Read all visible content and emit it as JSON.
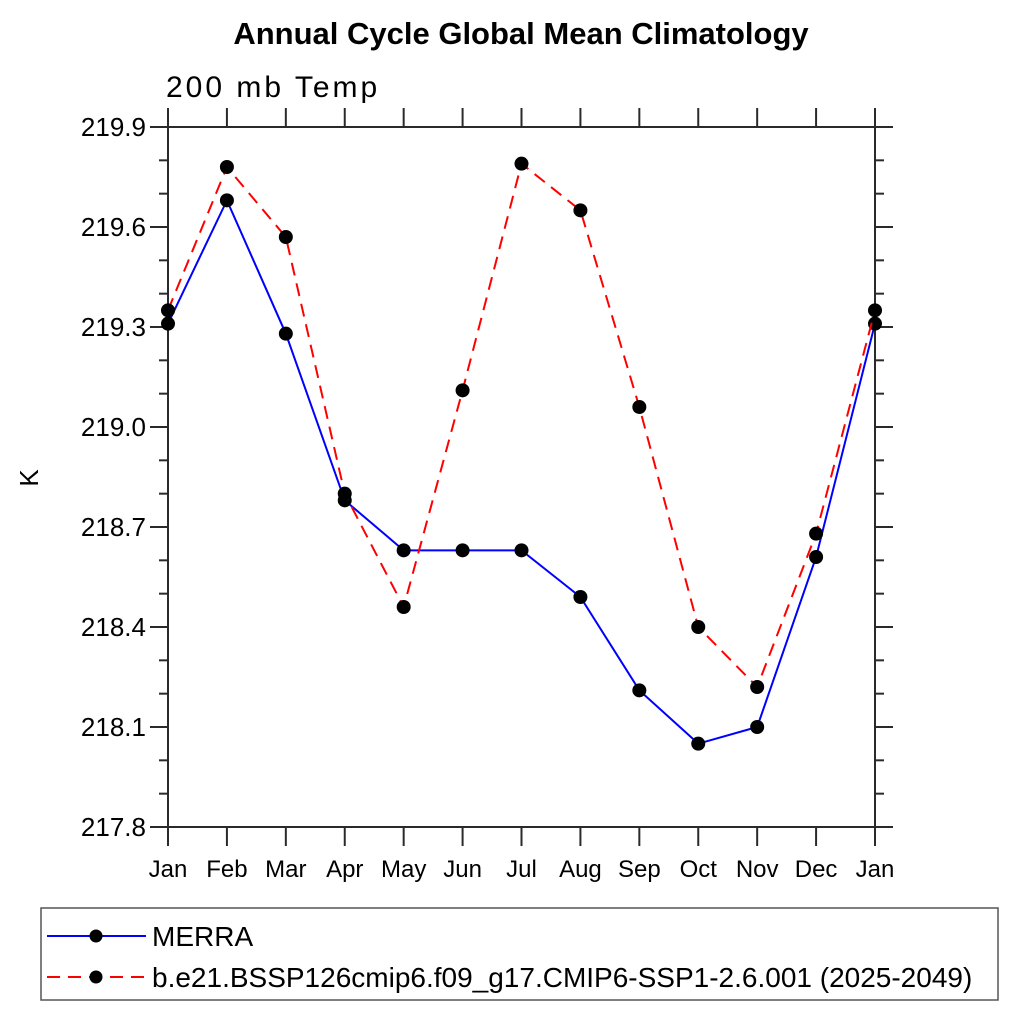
{
  "chart_data": {
    "type": "line",
    "title": "Annual Cycle Global Mean Climatology",
    "subtitle": "200 mb Temp",
    "ylabel": "K",
    "xlabel": "",
    "ylim": [
      217.8,
      219.9
    ],
    "ytick_major_interval": 0.3,
    "ytick_minor_interval": 0.1,
    "ytick_major_labels": [
      "217.8",
      "218.1",
      "218.4",
      "218.7",
      "219.0",
      "219.3",
      "219.6",
      "219.9"
    ],
    "grid": "off",
    "legend_position": "bottom-left-box",
    "categories": [
      "Jan",
      "Feb",
      "Mar",
      "Apr",
      "May",
      "Jun",
      "Jul",
      "Aug",
      "Sep",
      "Oct",
      "Nov",
      "Dec",
      "Jan"
    ],
    "series": [
      {
        "name": "MERRA",
        "line_color": "#0000ff",
        "line_style": "solid",
        "marker": "filled-circle",
        "marker_color": "#000000",
        "values": [
          219.31,
          219.68,
          219.28,
          218.78,
          218.63,
          218.63,
          218.63,
          218.49,
          218.21,
          218.05,
          218.1,
          218.61,
          219.31
        ]
      },
      {
        "name": "b.e21.BSSP126cmip6.f09_g17.CMIP6-SSP1-2.6.001 (2025-2049)",
        "line_color": "#ff0000",
        "line_style": "dashed",
        "marker": "filled-circle",
        "marker_color": "#000000",
        "values": [
          219.35,
          219.78,
          219.57,
          218.8,
          218.46,
          219.11,
          219.79,
          219.65,
          219.06,
          218.4,
          218.22,
          218.68,
          219.35
        ]
      }
    ]
  }
}
